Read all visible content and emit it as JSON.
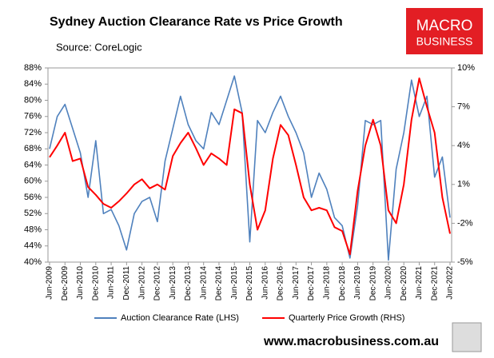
{
  "chart_data": {
    "type": "line",
    "title": "Sydney Auction Clearance Rate vs Price Growth",
    "subtitle": "Source: CoreLogic",
    "categories": [
      "Jun-2009",
      null,
      "Dec-2009",
      null,
      "Jun-2010",
      null,
      "Dec-2010",
      null,
      "Jun-2011",
      null,
      "Dec-2011",
      null,
      "Jun-2012",
      null,
      "Dec-2012",
      null,
      "Jun-2013",
      null,
      "Dec-2013",
      null,
      "Jun-2014",
      null,
      "Dec-2014",
      null,
      "Jun-2015",
      null,
      "Dec-2015",
      null,
      "Jun-2016",
      null,
      "Dec-2016",
      null,
      "Jun-2017",
      null,
      "Dec-2017",
      null,
      "Jun-2018",
      null,
      "Dec-2018",
      null,
      "Jun-2019",
      null,
      "Dec-2019",
      null,
      "Jun-2020",
      null,
      "Dec-2020",
      null,
      "Jun-2021",
      null,
      "Dec-2021",
      null,
      "Jun-2022"
    ],
    "series": [
      {
        "name": "Auction Clearance Rate (LHS)",
        "color": "#4f81bd",
        "axis": "y",
        "values": [
          68,
          76,
          79,
          73,
          67,
          56,
          70,
          52,
          53,
          49,
          43,
          52,
          55,
          56,
          50,
          65,
          73,
          81,
          74,
          70,
          68,
          77,
          74,
          80,
          86,
          77,
          45,
          75,
          72,
          77,
          81,
          76,
          72,
          67,
          56,
          62,
          58,
          51,
          49,
          41,
          54,
          75,
          74,
          75,
          40.5,
          63,
          72,
          85,
          76,
          81,
          61,
          66,
          51
        ]
      },
      {
        "name": "Quarterly Price Growth (RHS)",
        "color": "#ff0000",
        "axis": "y2",
        "values": [
          3.1,
          4.0,
          5.0,
          2.8,
          3.0,
          0.8,
          0.2,
          -0.5,
          -0.8,
          -0.3,
          0.3,
          1.0,
          1.4,
          0.7,
          1.0,
          0.6,
          3.2,
          4.2,
          5.0,
          3.8,
          2.5,
          3.4,
          3.0,
          2.5,
          6.8,
          6.5,
          1.0,
          -2.5,
          -1.0,
          3.0,
          5.6,
          4.8,
          2.5,
          0.0,
          -1.0,
          -0.8,
          -1.0,
          -2.3,
          -2.6,
          -4.4,
          0.5,
          4.0,
          6.0,
          4.0,
          -1.0,
          -2.0,
          1.0,
          6.0,
          9.2,
          7.0,
          5.0,
          0.0,
          -2.8
        ]
      }
    ],
    "ylim": [
      40,
      88
    ],
    "yticks": [
      {
        "value": 40,
        "label": "40%"
      },
      {
        "value": 44,
        "label": "44%"
      },
      {
        "value": 48,
        "label": "48%"
      },
      {
        "value": 52,
        "label": "52%"
      },
      {
        "value": 56,
        "label": "56%"
      },
      {
        "value": 60,
        "label": "60%"
      },
      {
        "value": 64,
        "label": "64%"
      },
      {
        "value": 68,
        "label": "68%"
      },
      {
        "value": 72,
        "label": "72%"
      },
      {
        "value": 76,
        "label": "76%"
      },
      {
        "value": 80,
        "label": "80%"
      },
      {
        "value": 84,
        "label": "84%"
      },
      {
        "value": 88,
        "label": "88%"
      }
    ],
    "y2lim": [
      -5,
      10
    ],
    "y2ticks": [
      {
        "value": -5,
        "label": "-5%"
      },
      {
        "value": -2,
        "label": "-2%"
      },
      {
        "value": 1,
        "label": "1%"
      },
      {
        "value": 4,
        "label": "4%"
      },
      {
        "value": 7,
        "label": "7%"
      },
      {
        "value": 10,
        "label": "10%"
      }
    ],
    "grid": false,
    "legend": "bottom"
  },
  "logo": {
    "line1": "MACRO",
    "line2": "BUSINESS"
  },
  "footer": "www.macrobusiness.com.au"
}
